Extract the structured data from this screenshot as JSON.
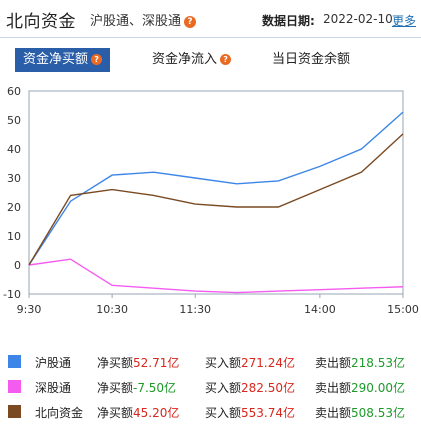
{
  "header": {
    "title": "北向资金",
    "subtitle": "沪股通、深股通",
    "date_label": "数据日期:",
    "date_value": "2022-02-10",
    "more_label": "更多"
  },
  "tabs": [
    {
      "label": "资金净买额",
      "active": true,
      "help": true
    },
    {
      "label": "资金净流入",
      "active": false,
      "help": true
    },
    {
      "label": "当日资金余额",
      "active": false,
      "help": false
    }
  ],
  "colors": {
    "hgt": "#3d86e8",
    "sgt": "#f45cf0",
    "north": "#7a4a22",
    "tab_active": "#2a5ea8",
    "accent": "#ea6a23"
  },
  "chart_data": {
    "type": "line",
    "x": [
      "9:30",
      "10:00",
      "10:30",
      "11:00",
      "11:30",
      "13:00",
      "13:30",
      "14:00",
      "14:30",
      "15:00"
    ],
    "x_ticks": [
      "9:30",
      "10:30",
      "11:30",
      "14:00",
      "15:00"
    ],
    "y_ticks": [
      60,
      50,
      40,
      30,
      20,
      10,
      0,
      -10
    ],
    "ylim": [
      -10,
      60
    ],
    "grid": false,
    "series": [
      {
        "name": "沪股通",
        "values": [
          0,
          22,
          31,
          32,
          30,
          28,
          29,
          34,
          40,
          52.71
        ]
      },
      {
        "name": "深股通",
        "values": [
          0,
          2,
          -7,
          -8,
          -9,
          -9.5,
          -9,
          -8.5,
          -8,
          -7.5
        ]
      },
      {
        "name": "北向资金",
        "values": [
          0,
          24,
          26,
          24,
          21,
          20,
          20,
          26,
          32,
          45.2
        ]
      }
    ]
  },
  "stats": [
    {
      "name": "沪股通",
      "net_label": "净买额",
      "net": "52.71亿",
      "buy_label": "买入额",
      "buy": "271.24亿",
      "sell_label": "卖出额",
      "sell": "218.53亿"
    },
    {
      "name": "深股通",
      "net_label": "净买额",
      "net": "-7.50亿",
      "buy_label": "买入额",
      "buy": "282.50亿",
      "sell_label": "卖出额",
      "sell": "290.00亿"
    },
    {
      "name": "北向资金",
      "net_label": "净买额",
      "net": "45.20亿",
      "buy_label": "买入额",
      "buy": "553.74亿",
      "sell_label": "卖出额",
      "sell": "508.53亿"
    }
  ]
}
